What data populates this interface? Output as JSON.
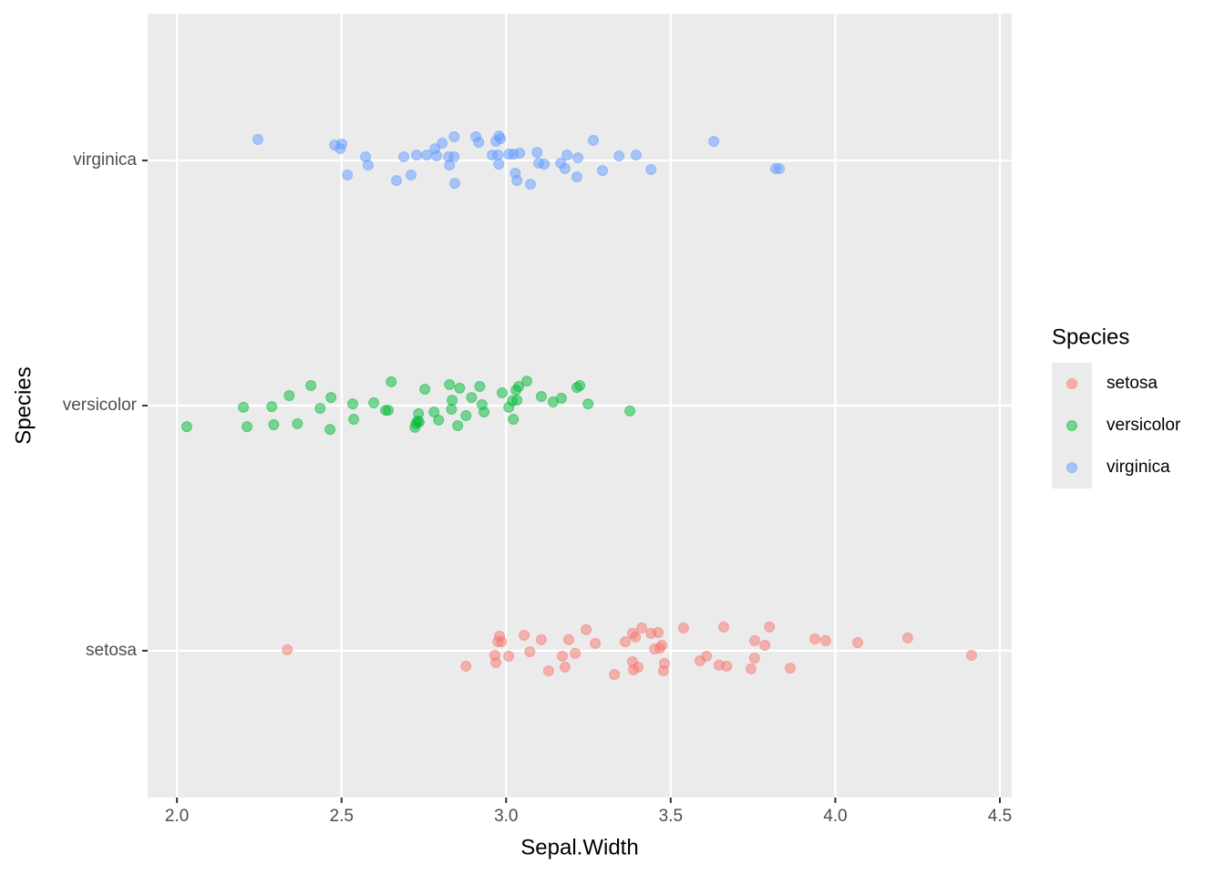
{
  "chart_data": {
    "type": "scatter",
    "x_label": "Sepal.Width",
    "y_label": "Species",
    "legend_title": "Species",
    "xlim": [
      1.911,
      4.536
    ],
    "ylim": [
      0.401,
      3.599
    ],
    "xticks": [
      {
        "value": 2,
        "label": "2.0"
      },
      2.5,
      {
        "value": 3,
        "label": "3.0"
      },
      3.5,
      {
        "value": 4,
        "label": "4.0"
      },
      4.5
    ],
    "yticks": [
      {
        "value": 1,
        "label": "setosa"
      },
      {
        "value": 2,
        "label": "versicolor"
      },
      {
        "value": 3,
        "label": "virginica"
      }
    ],
    "grid": true,
    "legend": "right",
    "opacity": 0.5,
    "series": [
      {
        "name": "setosa",
        "color": "#F8766D",
        "x": [
          2.335,
          2.878,
          2.966,
          2.969,
          2.975,
          2.98,
          2.986,
          3.008,
          3.055,
          3.072,
          3.107,
          3.129,
          3.171,
          3.179,
          3.19,
          3.21,
          3.243,
          3.271,
          3.329,
          3.362,
          3.384,
          3.393,
          3.384,
          3.387,
          3.401,
          3.412,
          3.44,
          3.451,
          3.462,
          3.473,
          3.481,
          3.478,
          3.539,
          3.589,
          3.609,
          3.647,
          3.661,
          3.67,
          3.744,
          3.755,
          3.755,
          3.786,
          3.8,
          3.863,
          3.938,
          3.971,
          4.068,
          4.22,
          4.414,
          3.467
        ],
        "y": [
          1.004,
          0.937,
          0.981,
          0.952,
          1.037,
          1.059,
          1.037,
          0.978,
          1.063,
          0.996,
          1.045,
          0.918,
          0.978,
          0.933,
          1.045,
          0.989,
          1.086,
          1.03,
          0.903,
          1.037,
          1.071,
          1.056,
          0.955,
          0.922,
          0.933,
          1.093,
          1.071,
          1.007,
          1.074,
          1.022,
          0.948,
          0.918,
          1.093,
          0.959,
          0.978,
          0.941,
          1.097,
          0.937,
          0.926,
          1.041,
          0.97,
          1.022,
          1.097,
          0.929,
          1.048,
          1.041,
          1.033,
          1.052,
          0.981,
          1.011
        ]
      },
      {
        "name": "versicolor",
        "color": "#00BA38",
        "x": [
          2.03,
          2.202,
          2.213,
          2.288,
          2.294,
          2.341,
          2.366,
          2.407,
          2.435,
          2.468,
          2.465,
          2.534,
          2.537,
          2.598,
          2.634,
          2.642,
          2.651,
          2.723,
          2.731,
          2.734,
          2.736,
          2.753,
          2.781,
          2.795,
          2.828,
          2.834,
          2.836,
          2.853,
          2.859,
          2.878,
          2.895,
          2.92,
          2.927,
          2.933,
          2.988,
          3.008,
          3.022,
          3.019,
          3.03,
          3.033,
          3.038,
          3.063,
          3.107,
          3.143,
          3.168,
          3.215,
          3.224,
          3.249,
          3.376,
          2.726
        ],
        "y": [
          1.914,
          1.993,
          1.914,
          1.996,
          1.922,
          2.041,
          1.926,
          2.082,
          1.989,
          2.033,
          1.903,
          2.007,
          1.944,
          2.011,
          1.981,
          1.981,
          2.097,
          1.911,
          1.937,
          1.967,
          1.933,
          2.067,
          1.974,
          1.941,
          2.086,
          1.985,
          2.022,
          1.918,
          2.071,
          1.959,
          2.033,
          2.078,
          2.004,
          1.974,
          2.052,
          1.993,
          1.944,
          2.019,
          2.063,
          2.022,
          2.078,
          2.1,
          2.037,
          2.015,
          2.03,
          2.074,
          2.082,
          2.007,
          1.978,
          1.926
        ]
      },
      {
        "name": "virginica",
        "color": "#619CFF",
        "x": [
          2.246,
          2.479,
          2.501,
          2.496,
          2.518,
          2.573,
          2.581,
          2.667,
          2.689,
          2.711,
          2.728,
          2.759,
          2.784,
          2.789,
          2.806,
          2.828,
          2.842,
          2.842,
          2.844,
          2.908,
          2.917,
          2.958,
          2.969,
          2.975,
          2.978,
          2.978,
          2.983,
          3.008,
          3.022,
          3.028,
          3.033,
          3.041,
          3.074,
          3.094,
          3.099,
          3.116,
          3.166,
          3.179,
          3.185,
          3.215,
          3.218,
          3.265,
          3.293,
          3.343,
          3.395,
          3.44,
          3.631,
          3.819,
          3.83,
          2.825
        ],
        "y": [
          3.086,
          3.063,
          3.067,
          3.048,
          2.941,
          3.015,
          2.981,
          2.918,
          3.015,
          2.941,
          3.022,
          3.022,
          3.048,
          3.019,
          3.071,
          2.981,
          3.097,
          3.015,
          2.907,
          3.097,
          3.074,
          3.022,
          3.078,
          3.022,
          2.985,
          3.1,
          3.089,
          3.026,
          3.026,
          2.948,
          2.918,
          3.03,
          2.903,
          3.033,
          2.989,
          2.985,
          2.989,
          2.967,
          3.022,
          2.933,
          3.011,
          3.082,
          2.959,
          3.019,
          3.022,
          2.963,
          3.078,
          2.967,
          2.967,
          3.015
        ]
      }
    ]
  }
}
